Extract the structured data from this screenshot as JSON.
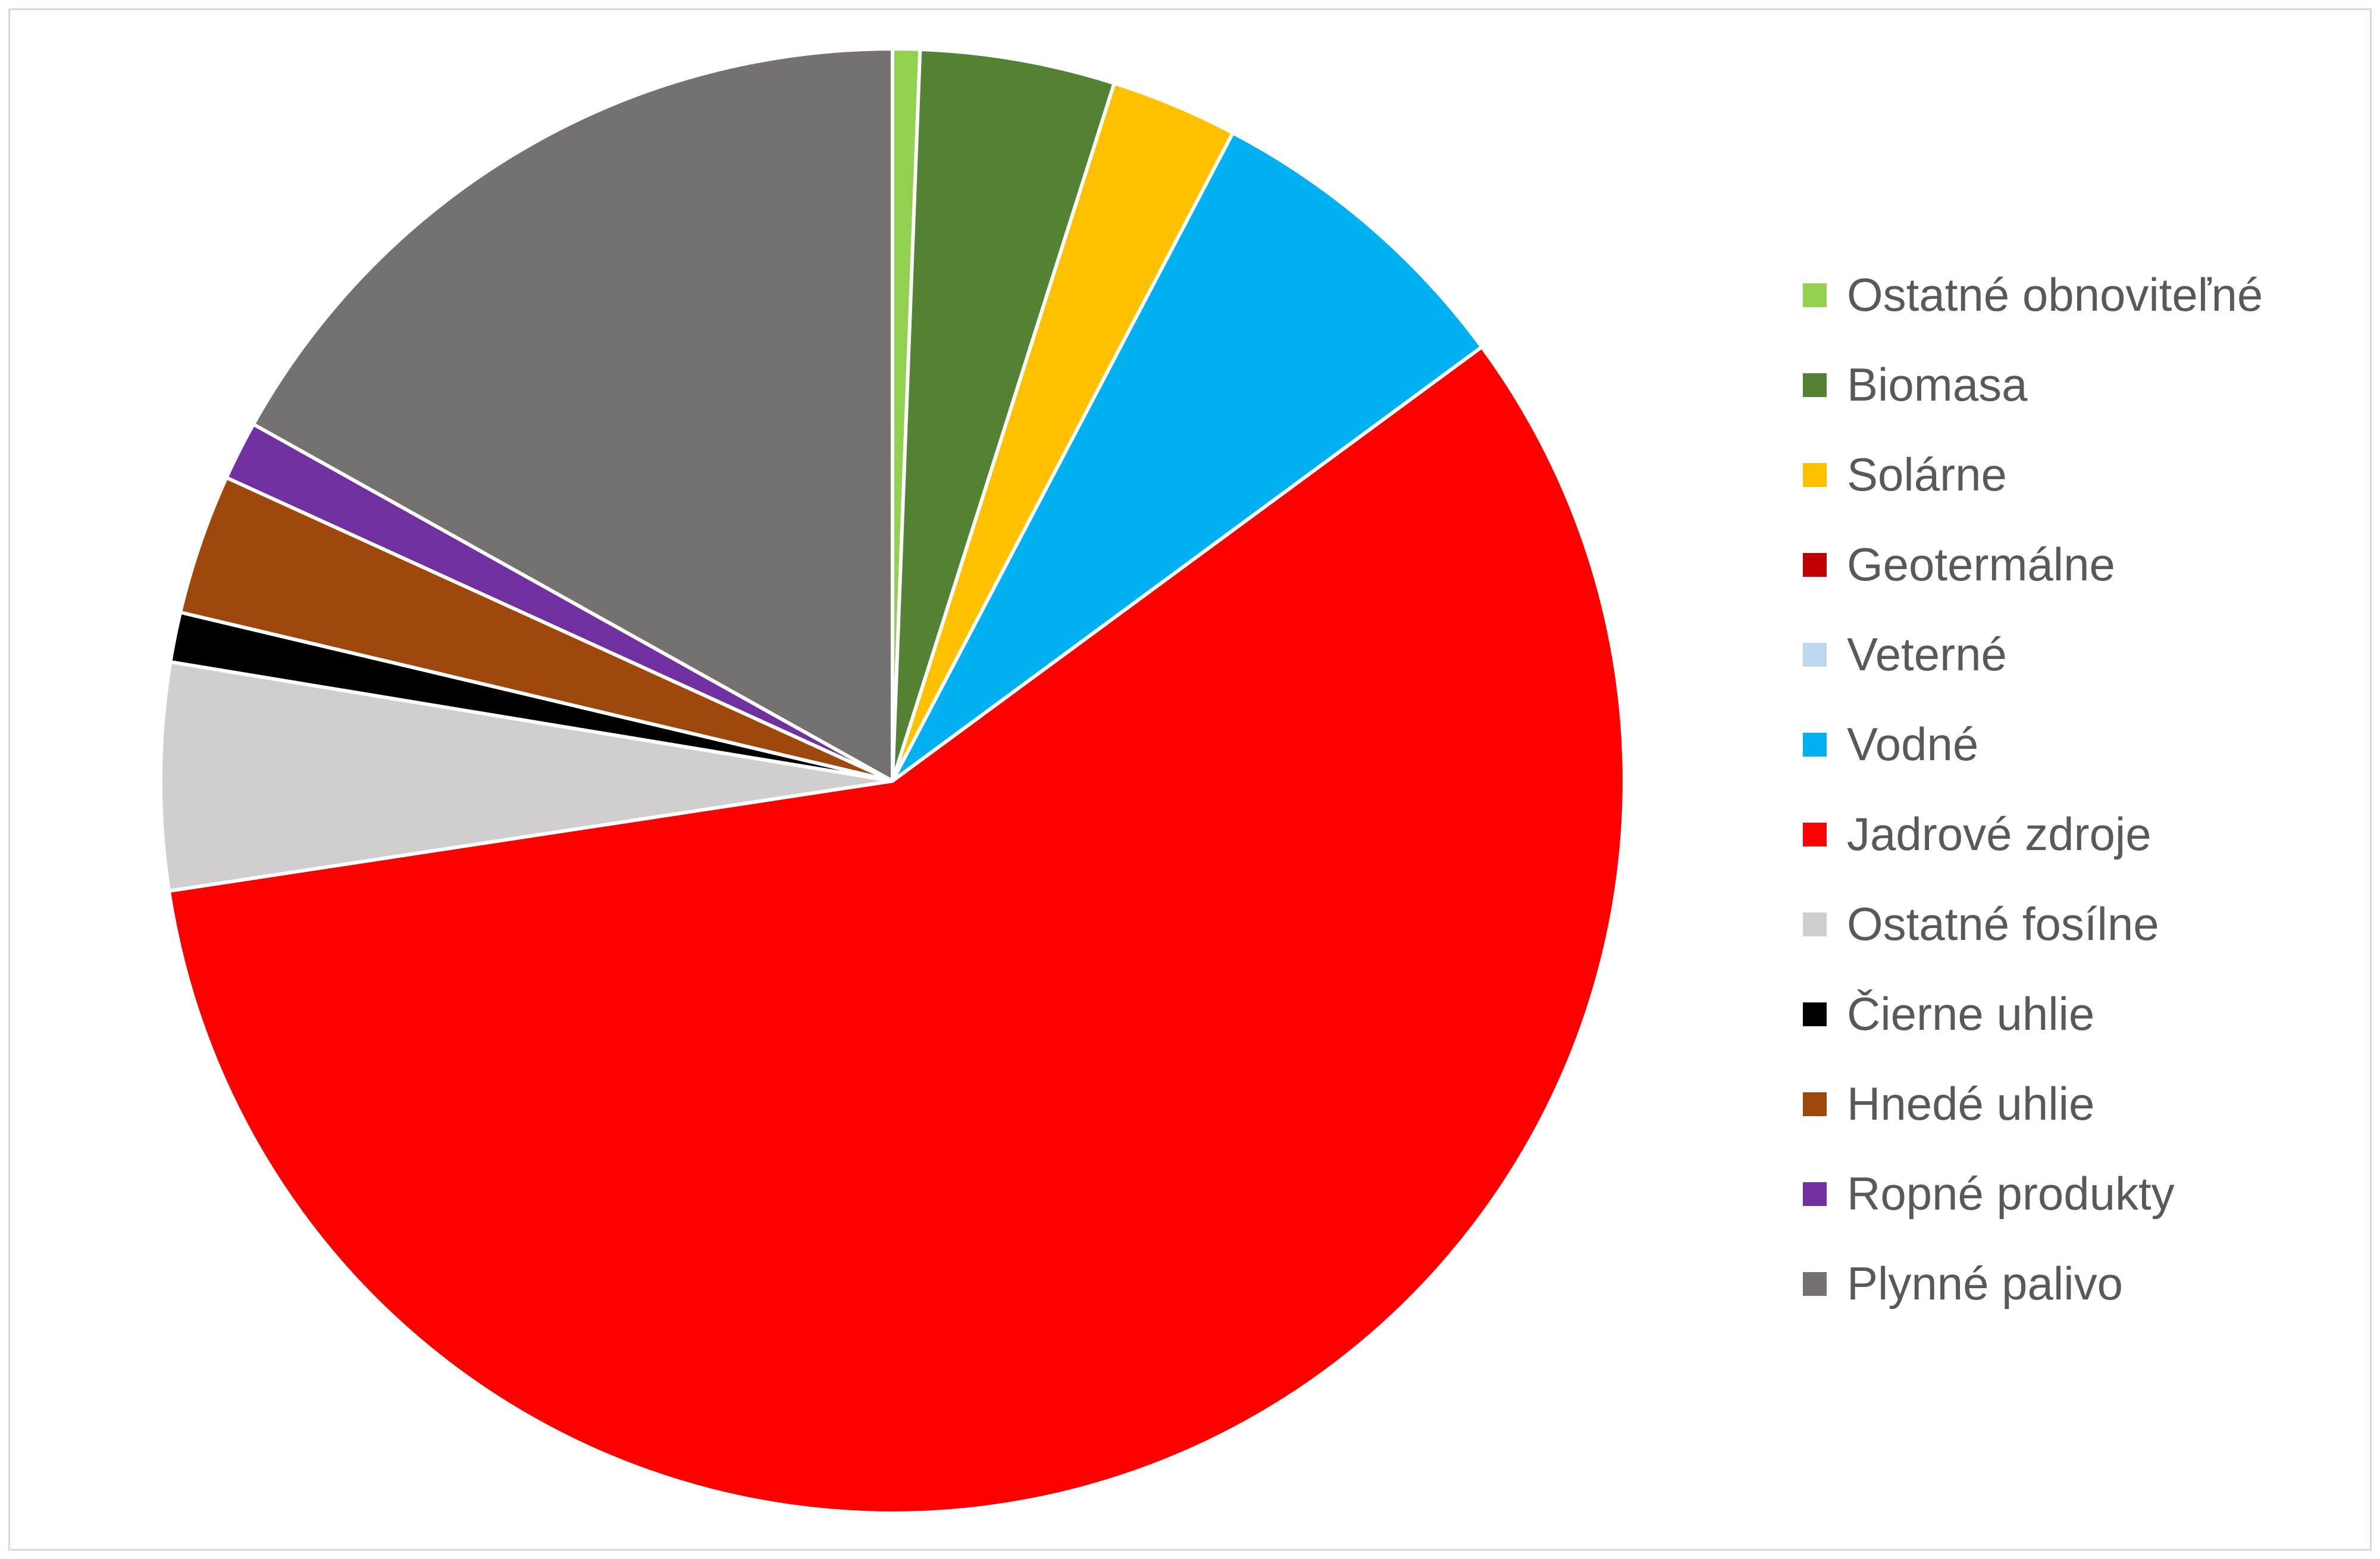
{
  "chart_data": {
    "type": "pie",
    "title": "",
    "start_angle_deg": 0,
    "direction": "clockwise",
    "legend_position": "right",
    "slices": [
      {
        "label": "Ostatné obnoviteľné",
        "value": 0.6,
        "color": "#92d050"
      },
      {
        "label": "Biomasa",
        "value": 4.3,
        "color": "#548235"
      },
      {
        "label": "Solárne",
        "value": 2.8,
        "color": "#ffc000"
      },
      {
        "label": "Geotermálne",
        "value": 0.0,
        "color": "#c00000"
      },
      {
        "label": "Veterné",
        "value": 0.0,
        "color": "#bdd7ee"
      },
      {
        "label": "Vodné",
        "value": 7.2,
        "color": "#00b0f0"
      },
      {
        "label": "Jadrové zdroje",
        "value": 57.7,
        "color": "#ff0000"
      },
      {
        "label": "Ostatné fosílne",
        "value": 5.0,
        "color": "#d0cece"
      },
      {
        "label": "Čierne uhlie",
        "value": 1.1,
        "color": "#000000"
      },
      {
        "label": "Hnedé uhlie",
        "value": 3.1,
        "color": "#9e480e"
      },
      {
        "label": "Ropné produkty",
        "value": 1.3,
        "color": "#7030a0"
      },
      {
        "label": "Plynné palivo",
        "value": 16.9,
        "color": "#767171"
      }
    ]
  }
}
